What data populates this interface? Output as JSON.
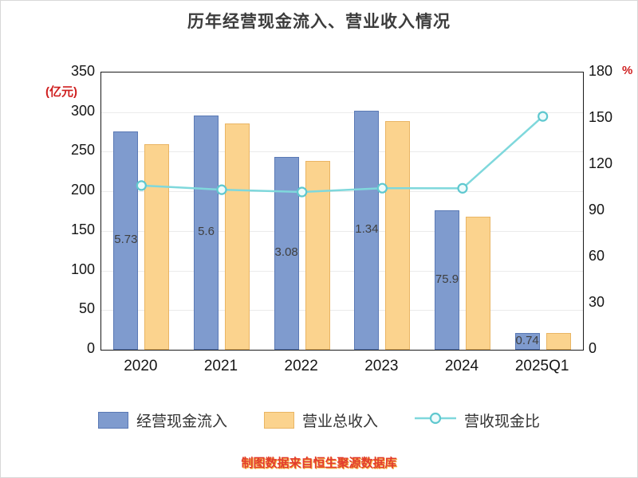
{
  "title": "历年经营现金流入、营业收入情况",
  "footer_note": "制图数据来自恒生聚源数据库",
  "left_axis": {
    "unit": "(亿元)",
    "unit_color": "#cf1f1f",
    "ticks": [
      0,
      50,
      100,
      150,
      200,
      250,
      300,
      350
    ]
  },
  "right_axis": {
    "unit": "%",
    "unit_color": "#cf1f1f",
    "ticks": [
      0,
      30,
      60,
      90,
      120,
      150,
      180
    ]
  },
  "legend": {
    "items": [
      {
        "label": "经营现金流入",
        "swatch": "blue-bar"
      },
      {
        "label": "营业总收入",
        "swatch": "orange-bar"
      },
      {
        "label": "营收现金比",
        "swatch": "teal-line"
      }
    ]
  },
  "chart_data": {
    "type": "bar+line",
    "title": "历年经营现金流入、营业收入情况",
    "categories": [
      "2020",
      "2021",
      "2022",
      "2023",
      "2024",
      "2025Q1"
    ],
    "left_ylim": [
      0,
      350
    ],
    "right_ylim": [
      0,
      180
    ],
    "grid": true,
    "legend_position": "bottom",
    "series": [
      {
        "name": "经营现金流入",
        "type": "bar",
        "axis": "left",
        "color": "#7f9bce",
        "border_color": "#5a79b5",
        "values": [
          275.73,
          295.6,
          243.08,
          301.34,
          175.9,
          20.74
        ],
        "visible_value_labels": [
          "5.73",
          "5.6",
          "3.08",
          "1.34",
          "75.9",
          "0.74"
        ]
      },
      {
        "name": "营业总收入",
        "type": "bar",
        "axis": "left",
        "color": "#fbd38e",
        "border_color": "#e9b564",
        "values": [
          259,
          286,
          238,
          289,
          168,
          21
        ]
      },
      {
        "name": "营收现金比",
        "type": "line",
        "axis": "right",
        "color": "#7fd8dc",
        "marker_fill": "#eefbfc",
        "marker_stroke": "#5fc8cf",
        "values": [
          106.6,
          103.9,
          102.4,
          104.9,
          104.8,
          151.5
        ]
      }
    ]
  }
}
